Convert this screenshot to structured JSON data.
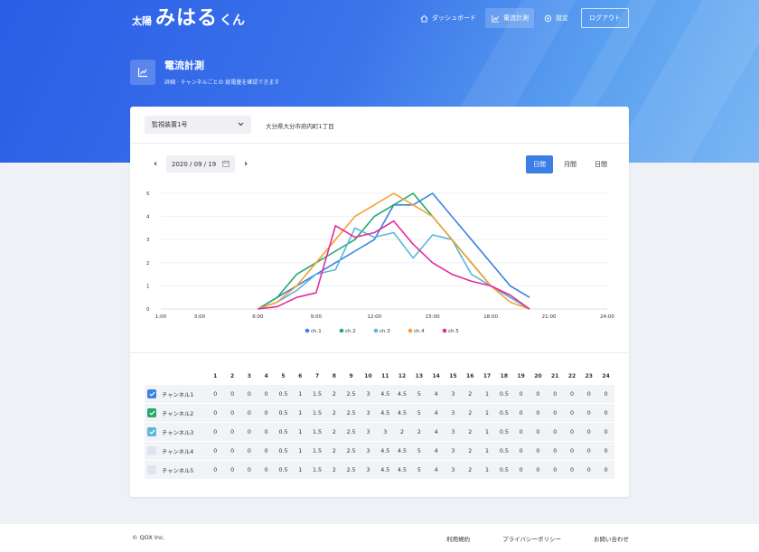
{
  "header": {
    "logo_prefix": "太陽",
    "logo_mark": "みはる",
    "logo_suffix": "くん",
    "nav": [
      {
        "label": "ダッシュボード",
        "icon": "home-icon",
        "active": false
      },
      {
        "label": "電流計測",
        "icon": "chart-icon",
        "active": true
      },
      {
        "label": "設定",
        "icon": "gear-icon",
        "active": false
      }
    ],
    "logout_label": "ログアウト"
  },
  "page": {
    "title": "電流計測",
    "subtitle": "詳細 · チャンネルごとの 総電量を確認できます"
  },
  "filters": {
    "device_select": "監視装置1号",
    "address": "大分県大分市府内町1丁目",
    "date": "2020 / 09 / 19",
    "periods": [
      "日間",
      "月間",
      "日間"
    ],
    "active_period": 0
  },
  "chart_data": {
    "type": "line",
    "x_ticks": [
      "1:00",
      "3:00",
      "6:00",
      "9:00",
      "12:00",
      "15:00",
      "18:00",
      "21:00",
      "24:00"
    ],
    "x": [
      1,
      2,
      3,
      4,
      5,
      6,
      7,
      8,
      9,
      10,
      11,
      12,
      13,
      14,
      15,
      16,
      17,
      18,
      19,
      20,
      21,
      22,
      23,
      24
    ],
    "xlim": [
      1,
      24
    ],
    "ylim": [
      0,
      5
    ],
    "y_ticks": [
      0,
      1,
      2,
      3,
      4,
      5
    ],
    "series": [
      {
        "name": "ch.1",
        "color": "#3b82e0",
        "values": [
          null,
          null,
          null,
          null,
          null,
          0,
          0.5,
          1,
          1.5,
          2,
          2.5,
          3,
          4.5,
          4.5,
          5,
          4,
          3,
          2,
          1,
          0.5,
          null,
          null,
          null,
          null
        ]
      },
      {
        "name": "ch.2",
        "color": "#22a96b",
        "values": [
          null,
          null,
          null,
          null,
          null,
          0,
          0.5,
          1.5,
          2,
          2.5,
          3,
          4,
          4.5,
          5,
          4,
          3,
          2,
          1,
          0.5,
          0,
          null,
          null,
          null,
          null
        ]
      },
      {
        "name": "ch.3",
        "color": "#5ab7dc",
        "values": [
          null,
          null,
          null,
          null,
          null,
          0,
          0.3,
          0.8,
          1.5,
          1.7,
          3.5,
          3.1,
          3.3,
          2.2,
          3.2,
          3,
          1.5,
          1,
          0.5,
          0,
          null,
          null,
          null,
          null
        ]
      },
      {
        "name": "ch.4",
        "color": "#f4a132",
        "values": [
          null,
          null,
          null,
          null,
          null,
          0,
          0.3,
          1,
          2,
          3,
          4,
          4.5,
          5,
          4.5,
          4,
          3,
          2,
          1,
          0.3,
          0,
          null,
          null,
          null,
          null
        ]
      },
      {
        "name": "ch.5",
        "color": "#e62a9c",
        "values": [
          null,
          null,
          null,
          null,
          null,
          0,
          0.1,
          0.5,
          0.7,
          3.6,
          3.1,
          3.3,
          3.8,
          2.8,
          2,
          1.5,
          1.2,
          1,
          0.6,
          0,
          null,
          null,
          null,
          null
        ]
      }
    ]
  },
  "table": {
    "columns": [
      "1",
      "2",
      "3",
      "4",
      "5",
      "6",
      "7",
      "8",
      "9",
      "10",
      "11",
      "12",
      "13",
      "14",
      "15",
      "16",
      "17",
      "18",
      "19",
      "20",
      "21",
      "22",
      "23",
      "24"
    ],
    "rows": [
      {
        "label": "チャンネル1",
        "checked": true,
        "color": "#3b82e0",
        "values": [
          "0",
          "0",
          "0",
          "0",
          "0.5",
          "1",
          "1.5",
          "2",
          "2.5",
          "3",
          "4.5",
          "4.5",
          "5",
          "4",
          "3",
          "2",
          "1",
          "0.5",
          "0",
          "0",
          "0",
          "0",
          "0",
          "0"
        ]
      },
      {
        "label": "チャンネル2",
        "checked": true,
        "color": "#22a96b",
        "values": [
          "0",
          "0",
          "0",
          "0",
          "0.5",
          "1",
          "1.5",
          "2",
          "2.5",
          "3",
          "4.5",
          "4.5",
          "5",
          "4",
          "3",
          "2",
          "1",
          "0.5",
          "0",
          "0",
          "0",
          "0",
          "0",
          "0"
        ]
      },
      {
        "label": "チャンネル3",
        "checked": true,
        "color": "#5ab7dc",
        "values": [
          "0",
          "0",
          "0",
          "0",
          "0.5",
          "1",
          "1.5",
          "2",
          "2.5",
          "3",
          "3",
          "2",
          "2",
          "4",
          "3",
          "2",
          "1",
          "0.5",
          "0",
          "0",
          "0",
          "0",
          "0",
          "0"
        ]
      },
      {
        "label": "チャンネル4",
        "checked": false,
        "color": "#dfe4ee",
        "values": [
          "0",
          "0",
          "0",
          "0",
          "0.5",
          "1",
          "1.5",
          "2",
          "2.5",
          "3",
          "4.5",
          "4.5",
          "5",
          "4",
          "3",
          "2",
          "1",
          "0.5",
          "0",
          "0",
          "0",
          "0",
          "0",
          "0"
        ]
      },
      {
        "label": "チャンネル5",
        "checked": false,
        "color": "#dfe4ee",
        "values": [
          "0",
          "0",
          "0",
          "0",
          "0.5",
          "1",
          "1.5",
          "2",
          "2.5",
          "3",
          "4.5",
          "4.5",
          "5",
          "4",
          "3",
          "2",
          "1",
          "0.5",
          "0",
          "0",
          "0",
          "0",
          "0",
          "0"
        ]
      }
    ]
  },
  "footer": {
    "copyright": "© QOX Inc.",
    "links": [
      "利用規約",
      "プライバシーポリシー",
      "お問い合わせ"
    ]
  }
}
